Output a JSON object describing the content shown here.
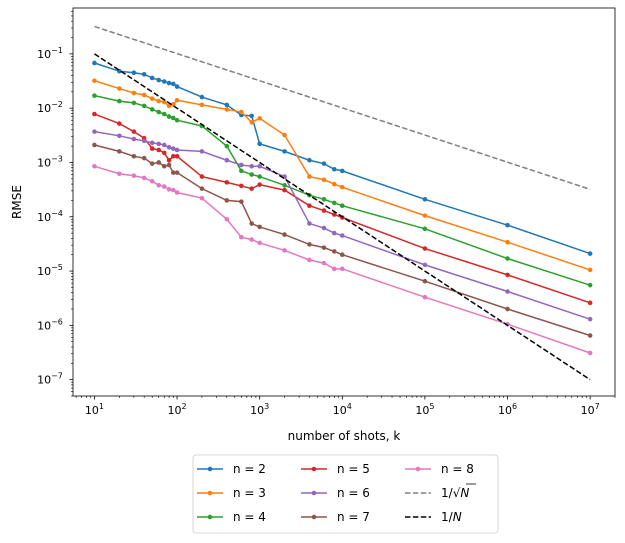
{
  "chart_data": {
    "type": "line",
    "xscale": "log",
    "yscale": "log",
    "xlabel": "number of shots, k",
    "ylabel": "RMSE",
    "xlim": [
      5.5,
      20000000
    ],
    "ylim": [
      5e-08,
      0.7
    ],
    "x_ticks": [
      {
        "value": 10,
        "base": "10",
        "exp": "1"
      },
      {
        "value": 100,
        "base": "10",
        "exp": "2"
      },
      {
        "value": 1000,
        "base": "10",
        "exp": "3"
      },
      {
        "value": 10000,
        "base": "10",
        "exp": "4"
      },
      {
        "value": 100000,
        "base": "10",
        "exp": "5"
      },
      {
        "value": 1000000,
        "base": "10",
        "exp": "6"
      },
      {
        "value": 10000000,
        "base": "10",
        "exp": "7"
      }
    ],
    "y_ticks": [
      {
        "value": 1e-07,
        "base": "10",
        "exp": "−7"
      },
      {
        "value": 1e-06,
        "base": "10",
        "exp": "−6"
      },
      {
        "value": 1e-05,
        "base": "10",
        "exp": "−5"
      },
      {
        "value": 0.0001,
        "base": "10",
        "exp": "−4"
      },
      {
        "value": 0.001,
        "base": "10",
        "exp": "−3"
      },
      {
        "value": 0.01,
        "base": "10",
        "exp": "−2"
      },
      {
        "value": 0.1,
        "base": "10",
        "exp": "−1"
      }
    ],
    "x": [
      10,
      20,
      30,
      40,
      50,
      60,
      70,
      80,
      90,
      100,
      200,
      400,
      600,
      800,
      1000,
      2000,
      4000,
      6000,
      8000,
      10000,
      100000,
      1000000,
      10000000
    ],
    "series": [
      {
        "name": "n = 2",
        "color": "#1f77b4",
        "style": "marker",
        "values": [
          0.068,
          0.048,
          0.045,
          0.042,
          0.036,
          0.033,
          0.031,
          0.029,
          0.028,
          0.025,
          0.016,
          0.0115,
          0.0075,
          0.0072,
          0.0022,
          0.0016,
          0.0011,
          0.00095,
          0.00075,
          0.0007,
          0.00021,
          7e-05,
          2.1e-05
        ]
      },
      {
        "name": "n = 3",
        "color": "#ff7f0e",
        "style": "marker",
        "values": [
          0.032,
          0.023,
          0.019,
          0.0175,
          0.015,
          0.0135,
          0.013,
          0.011,
          0.0118,
          0.014,
          0.0115,
          0.0095,
          0.0085,
          0.0055,
          0.0065,
          0.0032,
          0.00055,
          0.00048,
          0.0004,
          0.00035,
          0.000105,
          3.4e-05,
          1.05e-05
        ]
      },
      {
        "name": "n = 4",
        "color": "#2ca02c",
        "style": "marker",
        "values": [
          0.017,
          0.0135,
          0.0125,
          0.011,
          0.0095,
          0.0085,
          0.0078,
          0.007,
          0.0066,
          0.006,
          0.0047,
          0.002,
          0.0007,
          0.0006,
          0.00055,
          0.00038,
          0.00025,
          0.00021,
          0.00018,
          0.00016,
          6e-05,
          1.7e-05,
          5.5e-06
        ]
      },
      {
        "name": "n = 5",
        "color": "#d62728",
        "style": "marker",
        "values": [
          0.0078,
          0.0052,
          0.0037,
          0.0028,
          0.0018,
          0.0017,
          0.0015,
          0.0011,
          0.0013,
          0.0013,
          0.00055,
          0.00043,
          0.00037,
          0.00033,
          0.00039,
          0.00031,
          0.00016,
          0.00013,
          0.00011,
          9.7e-05,
          2.6e-05,
          8.5e-06,
          2.6e-06
        ]
      },
      {
        "name": "n = 6",
        "color": "#9467bd",
        "style": "marker",
        "values": [
          0.0037,
          0.0031,
          0.0027,
          0.0025,
          0.0023,
          0.0022,
          0.0021,
          0.0019,
          0.0018,
          0.0017,
          0.0016,
          0.0011,
          0.0009,
          0.00085,
          0.00085,
          0.00055,
          7.5e-05,
          6.2e-05,
          5e-05,
          4.5e-05,
          1.3e-05,
          4.2e-06,
          1.3e-06
        ]
      },
      {
        "name": "n = 7",
        "color": "#8c564b",
        "style": "marker",
        "values": [
          0.0021,
          0.0016,
          0.0013,
          0.0012,
          0.00095,
          0.001,
          0.00085,
          0.0009,
          0.00065,
          0.00065,
          0.00033,
          0.0002,
          0.00019,
          7.5e-05,
          6.5e-05,
          4.7e-05,
          3.1e-05,
          2.7e-05,
          2.3e-05,
          2e-05,
          6.5e-06,
          2e-06,
          6.5e-07
        ]
      },
      {
        "name": "n = 8",
        "color": "#e377c2",
        "style": "marker",
        "values": [
          0.00085,
          0.00062,
          0.00057,
          0.00052,
          0.00045,
          0.00038,
          0.00036,
          0.00032,
          0.00031,
          0.00028,
          0.00022,
          9e-05,
          4.2e-05,
          3.8e-05,
          3.3e-05,
          2.4e-05,
          1.6e-05,
          1.4e-05,
          1.1e-05,
          1.1e-05,
          3.3e-06,
          1.05e-06,
          3.1e-07
        ]
      },
      {
        "name": "1/√N",
        "color": "#808080",
        "style": "dashed",
        "x": [
          10,
          10000000
        ],
        "values": [
          0.32,
          0.00032
        ]
      },
      {
        "name": "1/N",
        "color": "#000000",
        "style": "dashed",
        "x": [
          10,
          10000000
        ],
        "values": [
          0.1,
          1e-07
        ]
      }
    ],
    "legend": {
      "placement": "below",
      "entries": [
        {
          "text": "n = 2",
          "series": 0
        },
        {
          "text": "n = 5",
          "series": 3
        },
        {
          "text": "n = 8",
          "series": 6
        },
        {
          "text": "n = 3",
          "series": 1
        },
        {
          "text": "n = 6",
          "series": 4
        },
        {
          "text": "1/√N",
          "series": 7,
          "prefix": "1/",
          "radical": "√",
          "var": "N"
        },
        {
          "text": "n = 4",
          "series": 2
        },
        {
          "text": "n = 7",
          "series": 5
        },
        {
          "text": "1/N",
          "series": 8,
          "prefix": "1/",
          "var": "N"
        }
      ]
    }
  }
}
